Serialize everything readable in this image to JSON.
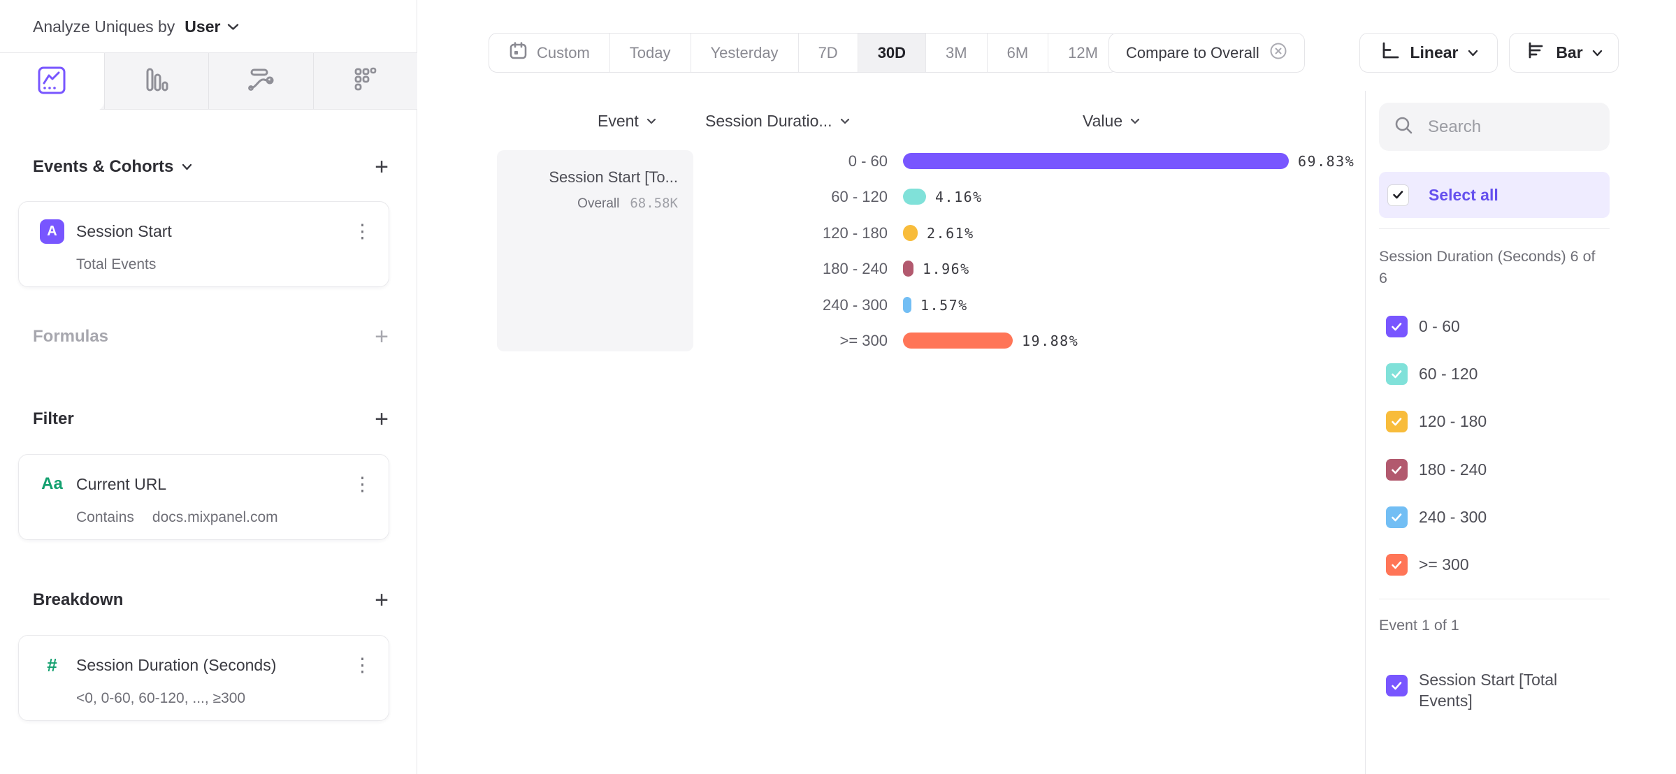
{
  "header": {
    "title_label": "Analyze Uniques by",
    "title_value": "User"
  },
  "sidebar": {
    "tabs": [
      {
        "icon": "insights-line-chart-icon",
        "selected": true
      },
      {
        "icon": "bar-chart-icon",
        "selected": false
      },
      {
        "icon": "flows-icon",
        "selected": false
      },
      {
        "icon": "retention-grid-icon",
        "selected": false
      }
    ],
    "events_cohorts": {
      "heading": "Events & Cohorts",
      "add": "+",
      "card": {
        "badge": "A",
        "title": "Session Start",
        "menu": "⋮",
        "subtitle": "Total Events"
      }
    },
    "formulas": {
      "heading": "Formulas",
      "add": "+"
    },
    "filter": {
      "heading": "Filter",
      "add": "+",
      "card": {
        "icon_label": "Aa",
        "title": "Current URL",
        "menu": "⋮",
        "operator": "Contains",
        "value": "docs.mixpanel.com"
      }
    },
    "breakdown": {
      "heading": "Breakdown",
      "add": "+",
      "card": {
        "icon_label": "#",
        "title": "Session Duration (Seconds)",
        "menu": "⋮",
        "subtitle": "<0, 0-60, 60-120, ..., ≥300"
      }
    }
  },
  "toolbar": {
    "date_ranges": [
      "Custom",
      "Today",
      "Yesterday",
      "7D",
      "30D",
      "3M",
      "6M",
      "12M"
    ],
    "selected_range": "30D",
    "compare_label": "Compare to Overall",
    "scale_label": "Linear",
    "type_label": "Bar"
  },
  "chart": {
    "headers": {
      "event": "Event",
      "breakdown": "Session Duratio...",
      "value": "Value"
    },
    "event_cell": {
      "title": "Session Start [To...",
      "overall_label": "Overall",
      "overall_value": "68.58K"
    }
  },
  "chart_data": {
    "type": "bar",
    "orientation": "horizontal",
    "series_name": "Session Start [Total Events]",
    "overall_value": "68.58K",
    "categories": [
      "0 - 60",
      "60 - 120",
      "120 - 180",
      "180 - 240",
      "240 - 300",
      ">= 300"
    ],
    "values": [
      69.83,
      4.16,
      2.61,
      1.96,
      1.57,
      19.88
    ],
    "value_labels": [
      "69.83%",
      "4.16%",
      "2.61%",
      "1.96%",
      "1.57%",
      "19.88%"
    ],
    "colors": [
      "#7856FF",
      "#80E1D9",
      "#F8BC3B",
      "#B2596E",
      "#72BEF4",
      "#FF7557"
    ],
    "unit": "percent",
    "xlabel": "Value"
  },
  "right_panel": {
    "search_placeholder": "Search",
    "select_all_label": "Select all",
    "group_count_label": "Session Duration (Seconds) 6 of 6",
    "items": [
      {
        "label": "0 - 60",
        "color": "#7856FF",
        "checked": true
      },
      {
        "label": "60 - 120",
        "color": "#80E1D9",
        "checked": true
      },
      {
        "label": "120 - 180",
        "color": "#F8BC3B",
        "checked": true
      },
      {
        "label": "180 - 240",
        "color": "#B2596E",
        "checked": true
      },
      {
        "label": "240 - 300",
        "color": "#72BEF4",
        "checked": true
      },
      {
        "label": ">= 300",
        "color": "#FF7557",
        "checked": true
      }
    ],
    "event_count_label": "Event 1 of 1",
    "event_item": {
      "label": "Session Start [Total Events]",
      "color": "#7856FF",
      "checked": true
    }
  }
}
